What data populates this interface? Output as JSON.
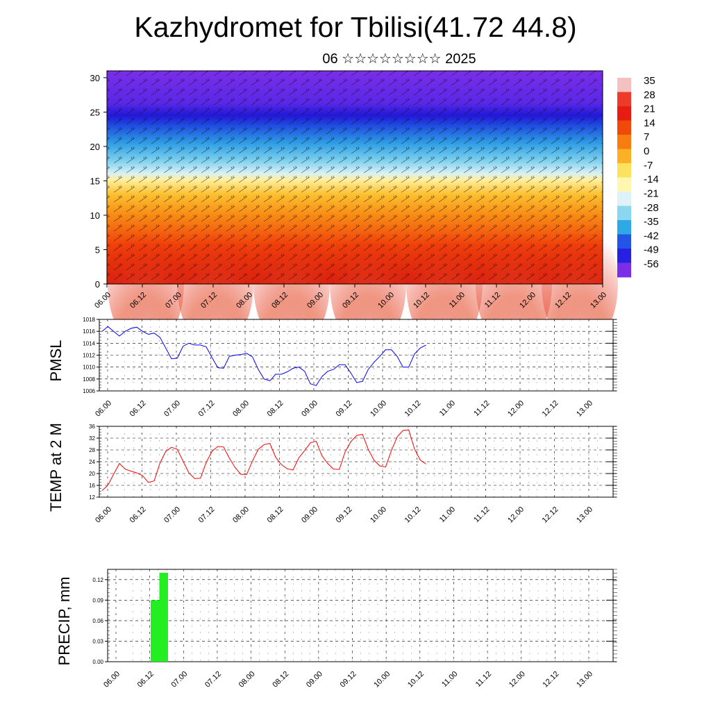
{
  "title": "Kazhydromet for Tbilisi(41.72 44.8)",
  "subtitle": "06 ☆☆☆☆☆☆☆☆ 2025",
  "colorbar": {
    "labels": [
      "35",
      "28",
      "21",
      "14",
      "7",
      "0",
      "-7",
      "-14",
      "-21",
      "-28",
      "-35",
      "-42",
      "-49",
      "-56"
    ],
    "colors": [
      "#f4c0c0",
      "#ee3a2a",
      "#e81c10",
      "#f04a08",
      "#f77d10",
      "#fbb025",
      "#fde260",
      "#fff6b0",
      "#dff2f7",
      "#8cd7f0",
      "#2fa8e6",
      "#2255e6",
      "#2820e0",
      "#7a2ee8"
    ]
  },
  "chart_data": [
    {
      "id": "upper-air",
      "type": "heatmap",
      "description_free": true,
      "ylabel": "",
      "ylim": [
        0,
        31
      ],
      "yticks": [
        "0",
        "5",
        "10",
        "15",
        "20",
        "25",
        "30"
      ],
      "xticks": [
        "06.00",
        "06.12",
        "07.00",
        "07.12",
        "08.00",
        "08.12",
        "09.00",
        "09.12",
        "10.00",
        "10.12",
        "11.00",
        "11.12",
        "12.00",
        "12.12",
        "13.00"
      ]
    },
    {
      "id": "pmsl",
      "type": "line",
      "ylabel": "PMSL",
      "ylim": [
        1006,
        1018
      ],
      "yticks": [
        "1006",
        "1008",
        "1010",
        "1012",
        "1014",
        "1016",
        "1018"
      ],
      "xticks": [
        "06.00",
        "06.12",
        "07.00",
        "07.12",
        "08.00",
        "08.12",
        "09.00",
        "09.12",
        "10.00",
        "10.12",
        "11.00",
        "11.12",
        "12.00",
        "12.12",
        "13.00"
      ],
      "color": "#0000ff",
      "values": [
        1016.0,
        1016.8,
        1016.0,
        1015.2,
        1016.0,
        1016.5,
        1016.7,
        1016.0,
        1015.5,
        1015.7,
        1015.0,
        1013.2,
        1011.4,
        1011.5,
        1013.5,
        1014.0,
        1013.7,
        1013.7,
        1013.4,
        1011.6,
        1009.9,
        1009.8,
        1011.8,
        1012.0,
        1012.1,
        1012.3,
        1011.7,
        1009.6,
        1008.0,
        1007.7,
        1008.8,
        1008.8,
        1009.2,
        1009.8,
        1010.0,
        1009.3,
        1007.2,
        1006.9,
        1008.4,
        1009.3,
        1009.6,
        1010.4,
        1010.4,
        1009.0,
        1007.4,
        1007.6,
        1009.6,
        1010.8,
        1011.8,
        1012.9,
        1012.9,
        1011.8,
        1010.0,
        1010.0,
        1012.2,
        1013.2,
        1013.7
      ]
    },
    {
      "id": "temp2m",
      "type": "line",
      "ylabel": "TEMP at 2 M",
      "ylim": [
        12,
        36
      ],
      "yticks": [
        "12",
        "16",
        "20",
        "24",
        "28",
        "32",
        "36"
      ],
      "xticks": [
        "06.00",
        "06.12",
        "07.00",
        "07.12",
        "08.00",
        "08.12",
        "09.00",
        "09.12",
        "10.00",
        "10.12",
        "11.00",
        "11.12",
        "12.00",
        "12.12",
        "13.00"
      ],
      "color": "#ff0000",
      "values": [
        14.2,
        16.0,
        19.8,
        23.4,
        21.5,
        20.8,
        20.2,
        19.3,
        17.0,
        17.5,
        23.5,
        27.5,
        28.9,
        28.2,
        24.2,
        20.2,
        18.3,
        18.4,
        23.8,
        27.5,
        29.2,
        29.0,
        25.2,
        22.0,
        19.7,
        19.7,
        24.3,
        28.2,
        29.8,
        30.2,
        25.5,
        23.0,
        21.6,
        21.2,
        25.3,
        27.8,
        30.4,
        31.0,
        26.0,
        23.4,
        21.5,
        21.4,
        27.3,
        30.8,
        32.9,
        33.3,
        28.2,
        24.5,
        22.6,
        22.2,
        27.8,
        32.4,
        34.6,
        34.8,
        28.3,
        24.6,
        23.2
      ]
    },
    {
      "id": "precip",
      "type": "bar",
      "ylabel": "PRECIP, mm",
      "ylim": [
        0,
        0.135
      ],
      "yticks": [
        "0.00",
        "0.03",
        "0.06",
        "0.09",
        "0.12"
      ],
      "xticks": [
        "06.00",
        "06.12",
        "07.00",
        "07.12",
        "08.00",
        "08.12",
        "09.00",
        "09.12",
        "10.00",
        "10.12",
        "11.00",
        "11.12",
        "12.00",
        "12.12",
        "13.00"
      ],
      "color": "#22ee22",
      "bars": [
        {
          "t": 5,
          "value": 0.09
        },
        {
          "t": 6,
          "value": 0.13
        }
      ]
    }
  ]
}
